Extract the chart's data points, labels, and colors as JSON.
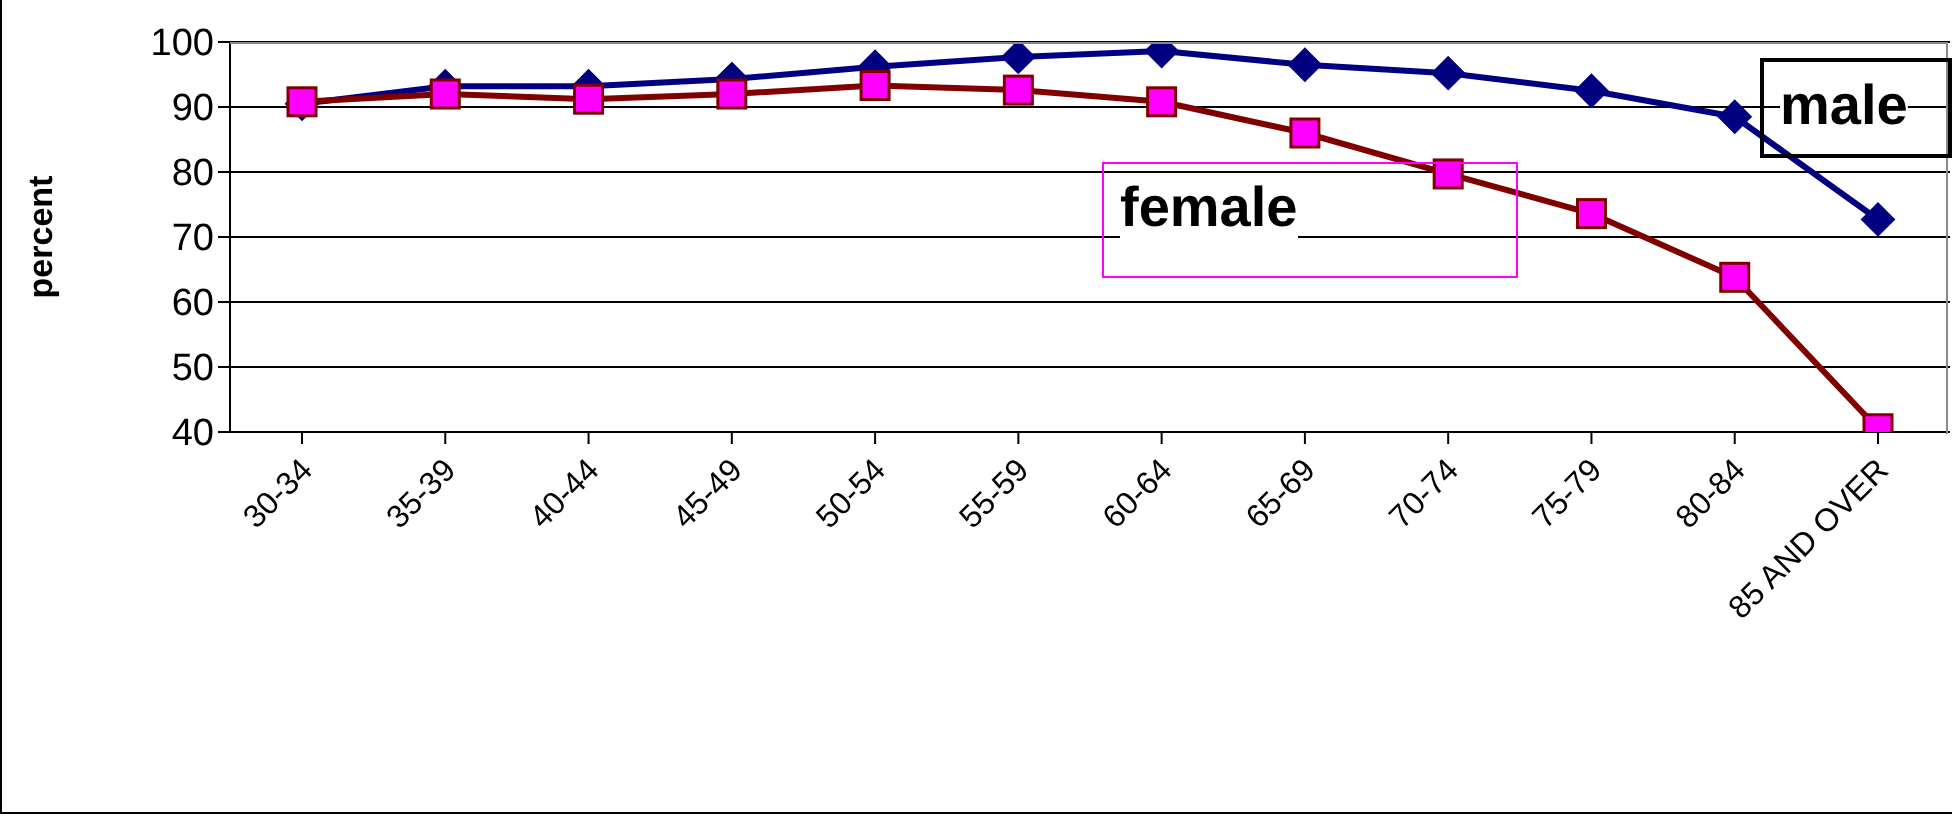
{
  "chart_data": {
    "type": "line",
    "ylabel": "percent",
    "categories": [
      "30-34",
      "35-39",
      "40-44",
      "45-49",
      "50-54",
      "55-59",
      "60-64",
      "65-69",
      "70-74",
      "75-79",
      "80-84",
      "85 AND OVER"
    ],
    "series": [
      {
        "name": "male",
        "color": "#000080",
        "marker": "diamond",
        "values": [
          90.5,
          93.2,
          93.2,
          94.3,
          96.2,
          97.7,
          98.6,
          96.5,
          95.2,
          92.5,
          88.5,
          72.7
        ]
      },
      {
        "name": "female",
        "color": "#800000",
        "marker": "square",
        "colors": [
          "#ff00ff",
          "#ff00ff",
          "#ff00ff",
          "#ff00ff",
          "#ff00ff",
          "#ff00ff",
          "#ff00ff",
          "#ff00ff",
          "#ff00ff",
          "#ff00ff",
          "#ff00ff",
          "#ff00ff"
        ],
        "values": [
          90.8,
          92,
          91.2,
          92,
          93.3,
          92.6,
          90.8,
          86,
          79.7,
          73.6,
          63.8,
          40.5
        ]
      }
    ],
    "ylim": [
      40,
      100
    ],
    "yticks": [
      40,
      50,
      60,
      70,
      80,
      90,
      100
    ],
    "grid": "y"
  }
}
